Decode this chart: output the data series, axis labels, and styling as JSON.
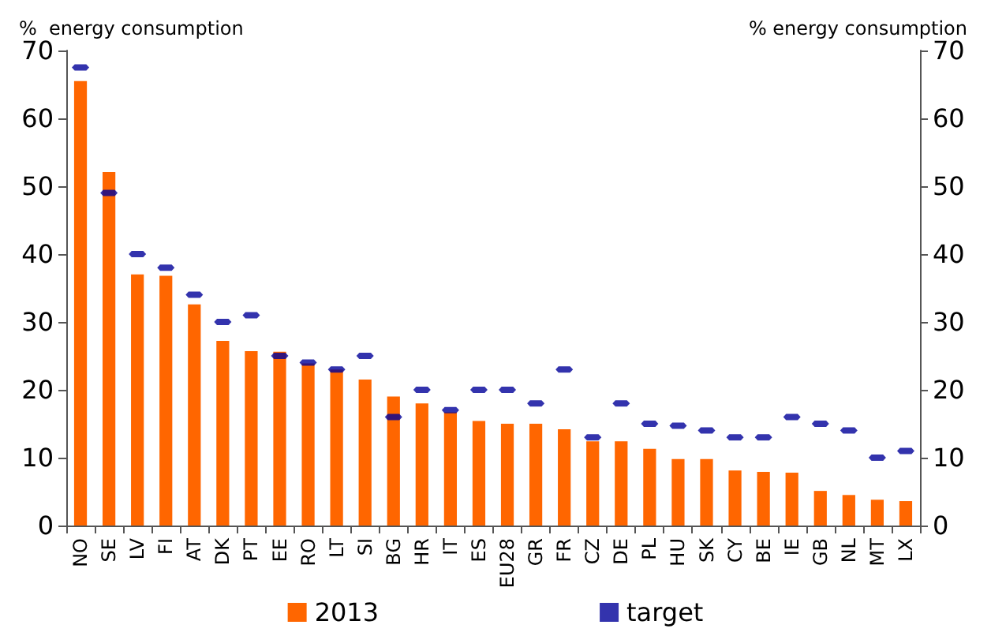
{
  "chart_data": {
    "type": "bar",
    "ylabel": "%  energy consumption",
    "y2label": "% energy consumption",
    "categories": [
      "NO",
      "SE",
      "LV",
      "FI",
      "AT",
      "DK",
      "PT",
      "EE",
      "RO",
      "LT",
      "SI",
      "BG",
      "HR",
      "IT",
      "ES",
      "EU28",
      "GR",
      "FR",
      "CZ",
      "DE",
      "PL",
      "HU",
      "SK",
      "CY",
      "BE",
      "IE",
      "GB",
      "NL",
      "MT",
      "LX"
    ],
    "series": [
      {
        "name": "2013",
        "color": "#ff6600",
        "values": [
          65.5,
          52.1,
          37,
          36.8,
          32.6,
          27.2,
          25.7,
          25.6,
          23.9,
          23,
          21.5,
          19,
          18,
          16.7,
          15.4,
          15,
          15,
          14.2,
          12.4,
          12.4,
          11.3,
          9.8,
          9.8,
          8.1,
          7.9,
          7.8,
          5.1,
          4.5,
          3.8,
          3.6
        ]
      },
      {
        "name": "target",
        "type": "scatter",
        "color": "#000099",
        "values": [
          67.5,
          49,
          40,
          38,
          34,
          30,
          31,
          25,
          24,
          23,
          25,
          16,
          20,
          17,
          20,
          20,
          18,
          23,
          13,
          18,
          15,
          14.7,
          14,
          13,
          13,
          16,
          15,
          14,
          10,
          11
        ]
      }
    ],
    "ylim": [
      0,
      70
    ],
    "yticks": [
      0,
      10,
      20,
      30,
      40,
      50,
      60,
      70
    ],
    "y2lim": [
      0,
      70
    ],
    "y2ticks": [
      0,
      10,
      20,
      30,
      40,
      50,
      60,
      70
    ],
    "grid": false,
    "legend": "bottom"
  }
}
